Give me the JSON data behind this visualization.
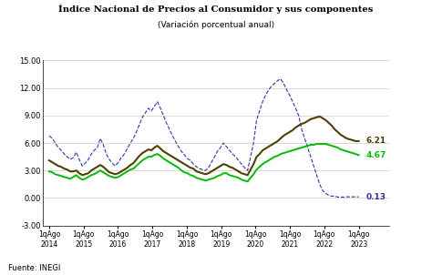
{
  "title_line1": "Índice Nacional de Precios al Consumidor y sus componentes",
  "subtitle": "(Variación porcentual anual)",
  "source": "Fuente: INEGI",
  "ylim": [
    -3.0,
    15.0
  ],
  "yticks": [
    -3.0,
    0.0,
    3.0,
    6.0,
    9.0,
    12.0,
    15.0
  ],
  "xtick_labels": [
    "1qAgo\n2014",
    "1qAgo\n2015",
    "1qAgo\n2016",
    "1qAgo\n2017",
    "1qAgo\n2018",
    "1qAgo\n2019",
    "1qAgo\n2020",
    "1qAgo\n2021",
    "1qAgo\n2022",
    "1qAgo\n2023"
  ],
  "inpc_color": "#4d4000",
  "suby_color": "#00bb00",
  "nosuby_color": "#3333aa",
  "end_labels": {
    "inpc": "6.21",
    "suby": "4.67",
    "nosuby": "0.13"
  },
  "inpc": [
    4.1,
    3.9,
    3.7,
    3.5,
    3.4,
    3.2,
    3.1,
    2.9,
    2.9,
    3.0,
    2.7,
    2.5,
    2.6,
    2.7,
    3.0,
    3.2,
    3.4,
    3.6,
    3.4,
    3.1,
    2.8,
    2.7,
    2.6,
    2.7,
    2.9,
    3.1,
    3.3,
    3.6,
    3.8,
    4.2,
    4.6,
    4.9,
    5.1,
    5.3,
    5.2,
    5.5,
    5.7,
    5.4,
    5.1,
    4.9,
    4.7,
    4.5,
    4.3,
    4.1,
    3.9,
    3.7,
    3.5,
    3.3,
    3.2,
    2.9,
    2.8,
    2.7,
    2.6,
    2.7,
    2.9,
    3.1,
    3.3,
    3.5,
    3.7,
    3.6,
    3.4,
    3.3,
    3.1,
    2.9,
    2.7,
    2.6,
    2.5,
    3.1,
    3.7,
    4.5,
    4.8,
    5.2,
    5.4,
    5.6,
    5.8,
    6.0,
    6.2,
    6.5,
    6.8,
    7.0,
    7.2,
    7.4,
    7.7,
    7.9,
    8.1,
    8.2,
    8.4,
    8.6,
    8.7,
    8.8,
    8.9,
    8.7,
    8.5,
    8.2,
    7.9,
    7.5,
    7.2,
    6.9,
    6.7,
    6.5,
    6.4,
    6.3,
    6.21,
    6.21
  ],
  "suby": [
    2.9,
    2.8,
    2.6,
    2.5,
    2.4,
    2.3,
    2.2,
    2.1,
    2.3,
    2.5,
    2.2,
    2.0,
    2.1,
    2.3,
    2.5,
    2.6,
    2.8,
    3.0,
    2.8,
    2.6,
    2.4,
    2.3,
    2.2,
    2.3,
    2.5,
    2.7,
    2.9,
    3.1,
    3.2,
    3.5,
    3.8,
    4.1,
    4.3,
    4.5,
    4.5,
    4.7,
    4.8,
    4.6,
    4.3,
    4.1,
    3.9,
    3.7,
    3.5,
    3.3,
    3.0,
    2.8,
    2.7,
    2.5,
    2.4,
    2.2,
    2.1,
    2.0,
    1.9,
    2.0,
    2.1,
    2.2,
    2.4,
    2.5,
    2.7,
    2.7,
    2.5,
    2.4,
    2.3,
    2.2,
    2.0,
    1.9,
    1.8,
    2.2,
    2.6,
    3.1,
    3.4,
    3.7,
    3.9,
    4.1,
    4.3,
    4.5,
    4.6,
    4.8,
    4.9,
    5.0,
    5.1,
    5.2,
    5.3,
    5.4,
    5.5,
    5.6,
    5.7,
    5.8,
    5.8,
    5.9,
    5.9,
    5.9,
    5.9,
    5.8,
    5.7,
    5.6,
    5.5,
    5.3,
    5.2,
    5.1,
    5.0,
    4.9,
    4.8,
    4.67
  ],
  "nosuby": [
    6.8,
    6.5,
    6.0,
    5.5,
    5.2,
    4.8,
    4.5,
    4.2,
    4.4,
    5.0,
    4.2,
    3.5,
    3.8,
    4.2,
    4.8,
    5.2,
    5.5,
    6.5,
    5.8,
    4.8,
    4.2,
    3.8,
    3.5,
    3.9,
    4.4,
    4.8,
    5.4,
    6.0,
    6.5,
    7.2,
    8.0,
    8.8,
    9.3,
    9.8,
    9.5,
    10.0,
    10.5,
    9.8,
    9.0,
    8.2,
    7.5,
    6.8,
    6.2,
    5.6,
    5.1,
    4.7,
    4.3,
    4.1,
    3.7,
    3.4,
    3.2,
    3.1,
    3.0,
    3.3,
    3.9,
    4.5,
    5.1,
    5.5,
    6.0,
    5.6,
    5.2,
    4.8,
    4.5,
    4.1,
    3.7,
    3.3,
    3.0,
    4.5,
    6.0,
    8.5,
    9.5,
    10.5,
    11.2,
    11.8,
    12.2,
    12.5,
    12.8,
    13.0,
    12.5,
    11.8,
    11.2,
    10.5,
    9.8,
    9.0,
    7.5,
    6.5,
    5.5,
    4.5,
    3.5,
    2.5,
    1.5,
    0.8,
    0.5,
    0.3,
    0.2,
    0.2,
    0.1,
    0.1,
    0.1,
    0.13,
    0.13,
    0.13,
    0.13,
    0.13
  ]
}
